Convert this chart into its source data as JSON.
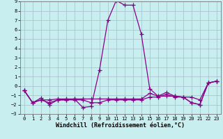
{
  "xlabel": "Windchill (Refroidissement éolien,°C)",
  "x_values": [
    0,
    1,
    2,
    3,
    4,
    5,
    6,
    7,
    8,
    9,
    10,
    11,
    12,
    13,
    14,
    15,
    16,
    17,
    18,
    19,
    20,
    21,
    22,
    23
  ],
  "y_series": [
    [
      -0.5,
      -1.8,
      -1.3,
      -2.0,
      -1.5,
      -1.5,
      -1.4,
      -2.3,
      -2.2,
      1.7,
      7.0,
      9.1,
      8.6,
      8.6,
      5.5,
      -0.3,
      -1.1,
      -0.7,
      -1.1,
      -1.2,
      -1.8,
      -2.0,
      0.3,
      0.5
    ],
    [
      -0.5,
      -1.8,
      -1.5,
      -1.5,
      -1.4,
      -1.4,
      -1.4,
      -1.4,
      -1.4,
      -1.4,
      -1.4,
      -1.4,
      -1.4,
      -1.4,
      -1.4,
      -0.8,
      -1.1,
      -1.1,
      -1.1,
      -1.2,
      -1.2,
      -1.5,
      0.3,
      0.5
    ],
    [
      -0.5,
      -1.8,
      -1.5,
      -1.8,
      -1.5,
      -1.5,
      -1.5,
      -1.5,
      -1.8,
      -1.8,
      -1.5,
      -1.5,
      -1.5,
      -1.5,
      -1.5,
      -1.2,
      -1.2,
      -0.9,
      -1.2,
      -1.2,
      -1.8,
      -2.0,
      0.3,
      0.5
    ]
  ],
  "line_color": "#880088",
  "marker": "+",
  "markersize": 4,
  "linewidth": 0.9,
  "bg_color": "#c8eef0",
  "grid_color": "#aabbcc",
  "ylim": [
    -3,
    9
  ],
  "xlim": [
    -0.5,
    23.5
  ],
  "yticks": [
    -3,
    -2,
    -1,
    0,
    1,
    2,
    3,
    4,
    5,
    6,
    7,
    8,
    9
  ],
  "xticks": [
    0,
    1,
    2,
    3,
    4,
    5,
    6,
    7,
    8,
    9,
    10,
    11,
    12,
    13,
    14,
    15,
    16,
    17,
    18,
    19,
    20,
    21,
    22,
    23
  ],
  "tick_fontsize": 5.0,
  "label_fontsize": 6.0
}
